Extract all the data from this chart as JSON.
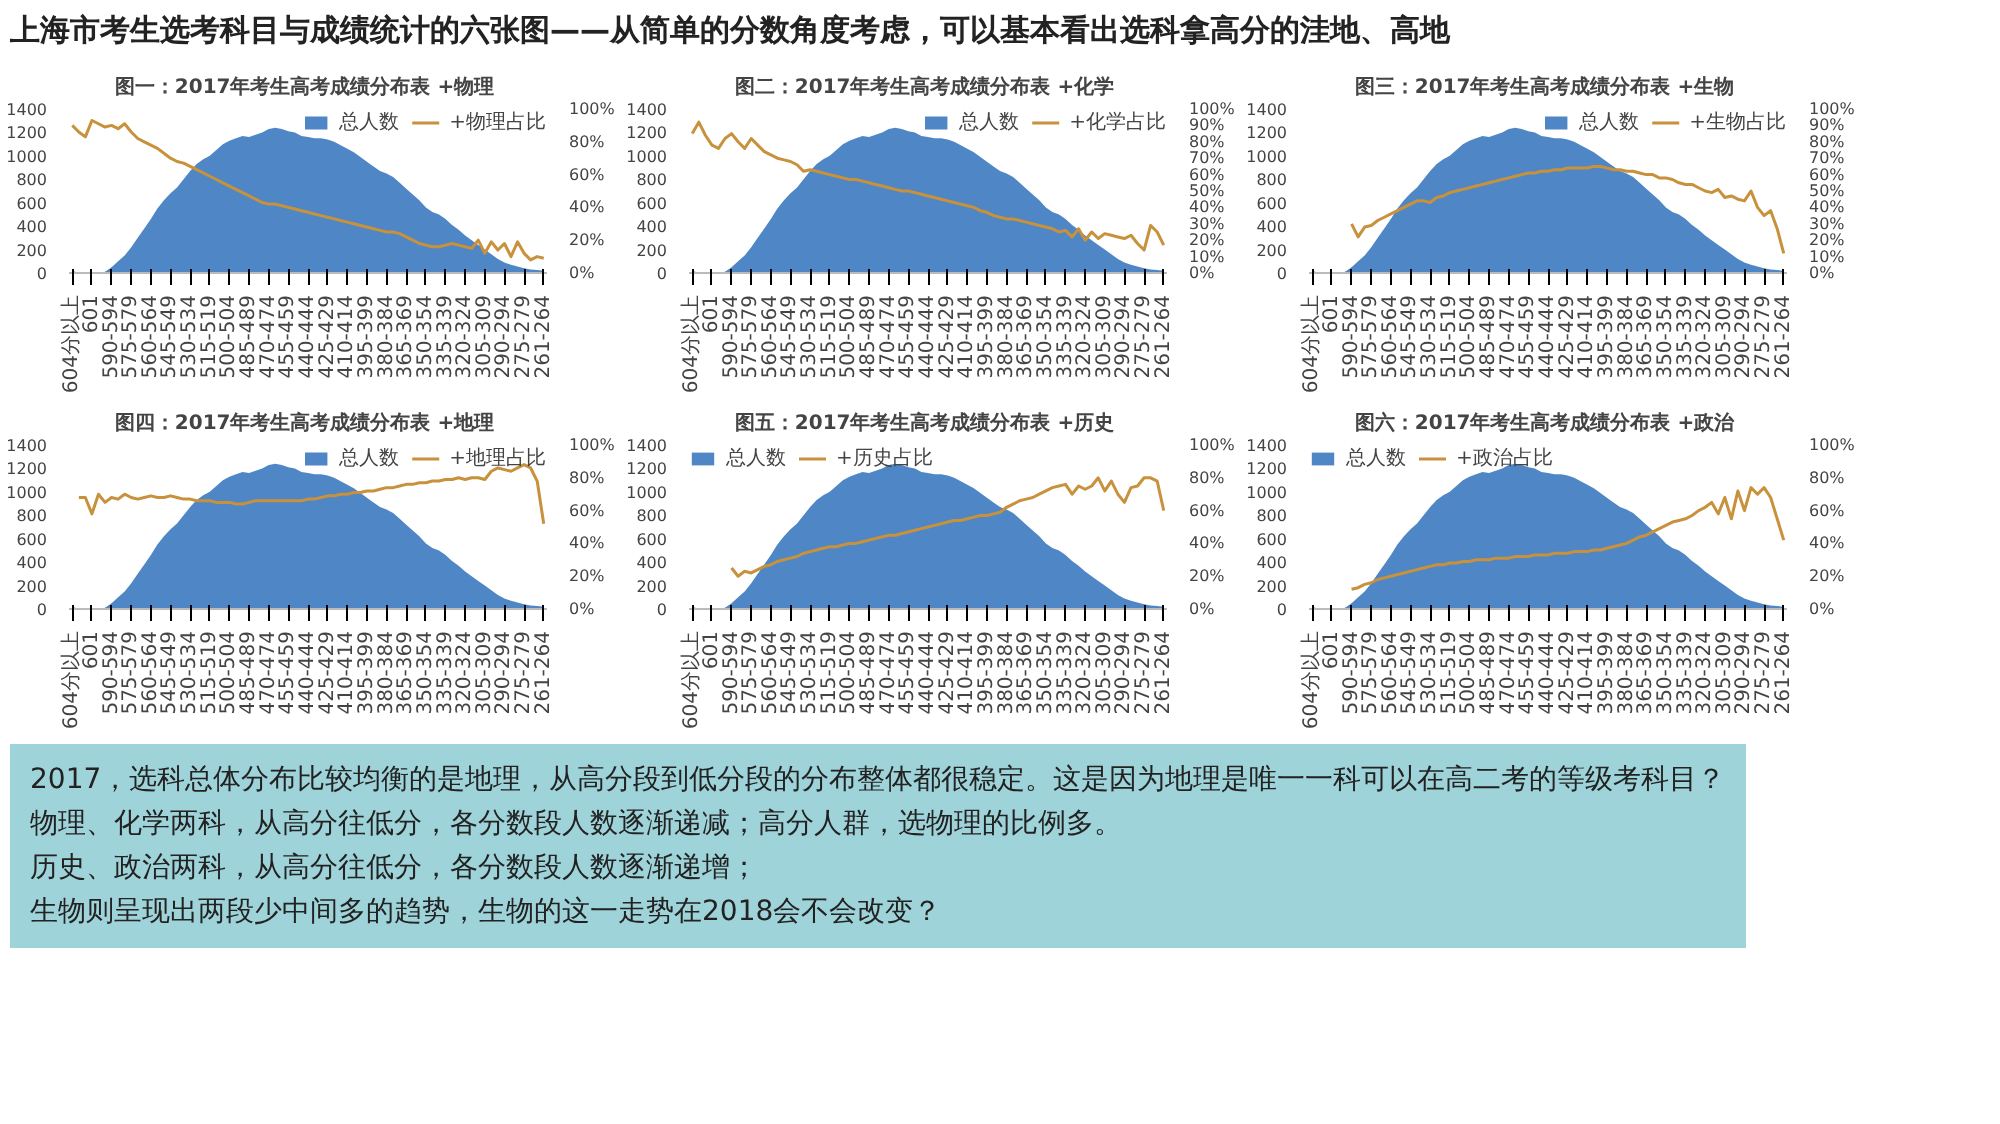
{
  "chart_data": [
    {
      "type": "other",
      "title": "上海市考生选考科目与成绩统计的六张图——从简单的分数角度考虑，可以基本看出选科拿高分的洼地、高地"
    },
    {
      "type": "area",
      "title": "图一：2017年考生高考成绩分布表  +物理",
      "legend": "top right",
      "ylim": [
        0,
        1400
      ],
      "yticks": [
        0,
        200,
        400,
        600,
        800,
        1000,
        1200,
        1400
      ],
      "y2lim": [
        0,
        100
      ],
      "y2ticks": [
        {
          "value": 0,
          "label": "0%"
        },
        {
          "value": 20,
          "label": "20%"
        },
        {
          "value": 40,
          "label": "40%"
        },
        {
          "value": 60,
          "label": "60%"
        },
        {
          "value": 80,
          "label": "80%"
        },
        {
          "value": 100,
          "label": "100%"
        }
      ],
      "categories": [
        "604分以上",
        null,
        null,
        "601",
        null,
        null,
        "590-594",
        null,
        null,
        "575-579",
        null,
        null,
        "560-564",
        null,
        null,
        "545-549",
        null,
        null,
        "530-534",
        null,
        null,
        "515-519",
        null,
        null,
        "500-504",
        null,
        null,
        "485-489",
        null,
        null,
        "470-474",
        null,
        null,
        "455-459",
        null,
        null,
        "440-444",
        null,
        null,
        "425-429",
        null,
        null,
        "410-414",
        null,
        null,
        "395-399",
        null,
        null,
        "380-384",
        null,
        null,
        "365-369",
        null,
        null,
        "350-354",
        null,
        null,
        "335-339",
        null,
        null,
        "320-324",
        null,
        null,
        "305-309",
        null,
        null,
        "290-294",
        null,
        null,
        "275-279",
        null,
        null,
        "261-264"
      ],
      "series": [
        {
          "name": "总人数",
          "type": "area",
          "color": "#4f86c6",
          "values": [
            20,
            0,
            0,
            0,
            0,
            10,
            50,
            100,
            150,
            220,
            300,
            380,
            460,
            550,
            620,
            680,
            730,
            800,
            870,
            930,
            970,
            1000,
            1050,
            1100,
            1130,
            1150,
            1170,
            1160,
            1180,
            1200,
            1230,
            1240,
            1230,
            1210,
            1200,
            1170,
            1160,
            1150,
            1150,
            1140,
            1120,
            1090,
            1060,
            1030,
            990,
            950,
            910,
            870,
            850,
            820,
            770,
            720,
            670,
            620,
            560,
            520,
            500,
            460,
            410,
            370,
            320,
            280,
            240,
            200,
            160,
            120,
            90,
            70,
            55,
            40,
            30,
            25,
            20
          ]
        },
        {
          "name": "+物理占比",
          "type": "line",
          "axis": "y2",
          "color": "#c8913c",
          "values": [
            90,
            86,
            83,
            93,
            91,
            89,
            90,
            88,
            91,
            86,
            82,
            80,
            78,
            76,
            73,
            70,
            68,
            67,
            65,
            63,
            61,
            59,
            57,
            55,
            53,
            51,
            49,
            47,
            45,
            43,
            42,
            42,
            41,
            40,
            39,
            38,
            37,
            36,
            35,
            34,
            33,
            32,
            31,
            30,
            29,
            28,
            27,
            26,
            25,
            25,
            24,
            22,
            20,
            18,
            17,
            16,
            16,
            17,
            18,
            17,
            16,
            15,
            20,
            12,
            19,
            14,
            18,
            10,
            19,
            12,
            8,
            10,
            9
          ]
        }
      ]
    },
    {
      "type": "area",
      "title": "图二：2017年考生高考成绩分布表  +化学",
      "legend": "top right",
      "ylim": [
        0,
        1400
      ],
      "yticks": [
        0,
        200,
        400,
        600,
        800,
        1000,
        1200,
        1400
      ],
      "y2lim": [
        0,
        100
      ],
      "y2ticks": [
        {
          "value": 0,
          "label": "0%"
        },
        {
          "value": 10,
          "label": "10%"
        },
        {
          "value": 20,
          "label": "20%"
        },
        {
          "value": 30,
          "label": "30%"
        },
        {
          "value": 40,
          "label": "40%"
        },
        {
          "value": 50,
          "label": "50%"
        },
        {
          "value": 60,
          "label": "60%"
        },
        {
          "value": 70,
          "label": "70%"
        },
        {
          "value": 80,
          "label": "80%"
        },
        {
          "value": 90,
          "label": "90%"
        },
        {
          "value": 100,
          "label": "100%"
        }
      ],
      "categories": [
        "604分以上",
        null,
        null,
        "601",
        null,
        null,
        "590-594",
        null,
        null,
        "575-579",
        null,
        null,
        "560-564",
        null,
        null,
        "545-549",
        null,
        null,
        "530-534",
        null,
        null,
        "515-519",
        null,
        null,
        "500-504",
        null,
        null,
        "485-489",
        null,
        null,
        "470-474",
        null,
        null,
        "455-459",
        null,
        null,
        "440-444",
        null,
        null,
        "425-429",
        null,
        null,
        "410-414",
        null,
        null,
        "395-399",
        null,
        null,
        "380-384",
        null,
        null,
        "365-369",
        null,
        null,
        "350-354",
        null,
        null,
        "335-339",
        null,
        null,
        "320-324",
        null,
        null,
        "305-309",
        null,
        null,
        "290-294",
        null,
        null,
        "275-279",
        null,
        null,
        "261-264"
      ],
      "series": [
        {
          "name": "总人数",
          "type": "area",
          "color": "#4f86c6",
          "values": [
            20,
            0,
            0,
            0,
            0,
            10,
            50,
            100,
            150,
            220,
            300,
            380,
            460,
            550,
            620,
            680,
            730,
            800,
            870,
            930,
            970,
            1000,
            1050,
            1100,
            1130,
            1150,
            1170,
            1160,
            1180,
            1200,
            1230,
            1240,
            1230,
            1210,
            1200,
            1170,
            1160,
            1150,
            1150,
            1140,
            1120,
            1090,
            1060,
            1030,
            990,
            950,
            910,
            870,
            850,
            820,
            770,
            720,
            670,
            620,
            560,
            520,
            500,
            460,
            410,
            370,
            320,
            280,
            240,
            200,
            160,
            120,
            90,
            70,
            55,
            40,
            30,
            25,
            20
          ]
        },
        {
          "name": "+化学占比",
          "type": "line",
          "axis": "y2",
          "color": "#c8913c",
          "values": [
            85,
            92,
            84,
            78,
            76,
            82,
            85,
            80,
            76,
            82,
            78,
            74,
            72,
            70,
            69,
            68,
            66,
            62,
            63,
            62,
            61,
            60,
            59,
            58,
            57,
            57,
            56,
            55,
            54,
            53,
            52,
            51,
            50,
            50,
            49,
            48,
            47,
            46,
            45,
            44,
            43,
            42,
            41,
            40,
            38,
            37,
            35,
            34,
            33,
            33,
            32,
            31,
            30,
            29,
            28,
            27,
            25,
            26,
            22,
            27,
            20,
            25,
            21,
            24,
            23,
            22,
            21,
            23,
            18,
            14,
            29,
            25,
            17
          ]
        }
      ]
    },
    {
      "type": "area",
      "title": "图三：2017年考生高考成绩分布表  +生物",
      "legend": "top right",
      "ylim": [
        0,
        1400
      ],
      "yticks": [
        0,
        200,
        400,
        600,
        800,
        1000,
        1200,
        1400
      ],
      "y2lim": [
        0,
        100
      ],
      "y2ticks": [
        {
          "value": 0,
          "label": "0%"
        },
        {
          "value": 10,
          "label": "10%"
        },
        {
          "value": 20,
          "label": "20%"
        },
        {
          "value": 30,
          "label": "30%"
        },
        {
          "value": 40,
          "label": "40%"
        },
        {
          "value": 50,
          "label": "50%"
        },
        {
          "value": 60,
          "label": "60%"
        },
        {
          "value": 70,
          "label": "70%"
        },
        {
          "value": 80,
          "label": "80%"
        },
        {
          "value": 90,
          "label": "90%"
        },
        {
          "value": 100,
          "label": "100%"
        }
      ],
      "categories": [
        "604分以上",
        null,
        null,
        "601",
        null,
        null,
        "590-594",
        null,
        null,
        "575-579",
        null,
        null,
        "560-564",
        null,
        null,
        "545-549",
        null,
        null,
        "530-534",
        null,
        null,
        "515-519",
        null,
        null,
        "500-504",
        null,
        null,
        "485-489",
        null,
        null,
        "470-474",
        null,
        null,
        "455-459",
        null,
        null,
        "440-444",
        null,
        null,
        "425-429",
        null,
        null,
        "410-414",
        null,
        null,
        "395-399",
        null,
        null,
        "380-384",
        null,
        null,
        "365-369",
        null,
        null,
        "350-354",
        null,
        null,
        "335-339",
        null,
        null,
        "320-324",
        null,
        null,
        "305-309",
        null,
        null,
        "290-294",
        null,
        null,
        "275-279",
        null,
        null,
        "261-264"
      ],
      "series": [
        {
          "name": "总人数",
          "type": "area",
          "color": "#4f86c6",
          "values": [
            20,
            0,
            0,
            0,
            0,
            10,
            50,
            100,
            150,
            220,
            300,
            380,
            460,
            550,
            620,
            680,
            730,
            800,
            870,
            930,
            970,
            1000,
            1050,
            1100,
            1130,
            1150,
            1170,
            1160,
            1180,
            1200,
            1230,
            1240,
            1230,
            1210,
            1200,
            1170,
            1160,
            1150,
            1150,
            1140,
            1120,
            1090,
            1060,
            1030,
            990,
            950,
            910,
            870,
            850,
            820,
            770,
            720,
            670,
            620,
            560,
            520,
            500,
            460,
            410,
            370,
            320,
            280,
            240,
            200,
            160,
            120,
            90,
            70,
            55,
            40,
            30,
            25,
            20
          ]
        },
        {
          "name": "+生物占比",
          "type": "line",
          "axis": "y2",
          "color": "#c8913c",
          "values": [
            null,
            null,
            null,
            null,
            null,
            null,
            30,
            22,
            28,
            29,
            32,
            34,
            36,
            38,
            40,
            42,
            44,
            44,
            43,
            46,
            47,
            49,
            50,
            51,
            52,
            53,
            54,
            55,
            56,
            57,
            58,
            59,
            60,
            61,
            61,
            62,
            62,
            63,
            63,
            64,
            64,
            64,
            64,
            65,
            65,
            64,
            63,
            63,
            62,
            62,
            61,
            60,
            60,
            58,
            58,
            57,
            55,
            54,
            54,
            52,
            50,
            49,
            51,
            46,
            47,
            45,
            44,
            50,
            40,
            35,
            38,
            27,
            12
          ]
        }
      ]
    },
    {
      "type": "area",
      "title": "图四：2017年考生高考成绩分布表  +地理",
      "legend": "top right",
      "ylim": [
        0,
        1400
      ],
      "yticks": [
        0,
        200,
        400,
        600,
        800,
        1000,
        1200,
        1400
      ],
      "y2lim": [
        0,
        100
      ],
      "y2ticks": [
        {
          "value": 0,
          "label": "0%"
        },
        {
          "value": 20,
          "label": "20%"
        },
        {
          "value": 40,
          "label": "40%"
        },
        {
          "value": 60,
          "label": "60%"
        },
        {
          "value": 80,
          "label": "80%"
        },
        {
          "value": 100,
          "label": "100%"
        }
      ],
      "categories": [
        "604分以上",
        null,
        null,
        "601",
        null,
        null,
        "590-594",
        null,
        null,
        "575-579",
        null,
        null,
        "560-564",
        null,
        null,
        "545-549",
        null,
        null,
        "530-534",
        null,
        null,
        "515-519",
        null,
        null,
        "500-504",
        null,
        null,
        "485-489",
        null,
        null,
        "470-474",
        null,
        null,
        "455-459",
        null,
        null,
        "440-444",
        null,
        null,
        "425-429",
        null,
        null,
        "410-414",
        null,
        null,
        "395-399",
        null,
        null,
        "380-384",
        null,
        null,
        "365-369",
        null,
        null,
        "350-354",
        null,
        null,
        "335-339",
        null,
        null,
        "320-324",
        null,
        null,
        "305-309",
        null,
        null,
        "290-294",
        null,
        null,
        "275-279",
        null,
        null,
        "261-264"
      ],
      "series": [
        {
          "name": "总人数",
          "type": "area",
          "color": "#4f86c6",
          "values": [
            20,
            0,
            0,
            0,
            0,
            10,
            50,
            100,
            150,
            220,
            300,
            380,
            460,
            550,
            620,
            680,
            730,
            800,
            870,
            930,
            970,
            1000,
            1050,
            1100,
            1130,
            1150,
            1170,
            1160,
            1180,
            1200,
            1230,
            1240,
            1230,
            1210,
            1200,
            1170,
            1160,
            1150,
            1150,
            1140,
            1120,
            1090,
            1060,
            1030,
            990,
            950,
            910,
            870,
            850,
            820,
            770,
            720,
            670,
            620,
            560,
            520,
            500,
            460,
            410,
            370,
            320,
            280,
            240,
            200,
            160,
            120,
            90,
            70,
            55,
            40,
            30,
            25,
            20
          ]
        },
        {
          "name": "+地理占比",
          "type": "line",
          "axis": "y2",
          "color": "#c8913c",
          "values": [
            null,
            68,
            68,
            58,
            70,
            65,
            68,
            67,
            70,
            68,
            67,
            68,
            69,
            68,
            68,
            69,
            68,
            67,
            67,
            66,
            66,
            66,
            65,
            65,
            65,
            64,
            64,
            65,
            66,
            66,
            66,
            66,
            66,
            66,
            66,
            66,
            67,
            67,
            68,
            69,
            69,
            70,
            70,
            71,
            71,
            72,
            72,
            73,
            74,
            74,
            75,
            76,
            76,
            77,
            77,
            78,
            78,
            79,
            79,
            80,
            79,
            80,
            80,
            79,
            84,
            86,
            85,
            84,
            86,
            88,
            86,
            78,
            52
          ]
        }
      ]
    },
    {
      "type": "area",
      "title": "图五：2017年考生高考成绩分布表  +历史",
      "legend": "top left",
      "ylim": [
        0,
        1400
      ],
      "yticks": [
        0,
        200,
        400,
        600,
        800,
        1000,
        1200,
        1400
      ],
      "y2lim": [
        0,
        100
      ],
      "y2ticks": [
        {
          "value": 0,
          "label": "0%"
        },
        {
          "value": 20,
          "label": "20%"
        },
        {
          "value": 40,
          "label": "40%"
        },
        {
          "value": 60,
          "label": "60%"
        },
        {
          "value": 80,
          "label": "80%"
        },
        {
          "value": 100,
          "label": "100%"
        }
      ],
      "categories": [
        "604分以上",
        null,
        null,
        "601",
        null,
        null,
        "590-594",
        null,
        null,
        "575-579",
        null,
        null,
        "560-564",
        null,
        null,
        "545-549",
        null,
        null,
        "530-534",
        null,
        null,
        "515-519",
        null,
        null,
        "500-504",
        null,
        null,
        "485-489",
        null,
        null,
        "470-474",
        null,
        null,
        "455-459",
        null,
        null,
        "440-444",
        null,
        null,
        "425-429",
        null,
        null,
        "410-414",
        null,
        null,
        "395-399",
        null,
        null,
        "380-384",
        null,
        null,
        "365-369",
        null,
        null,
        "350-354",
        null,
        null,
        "335-339",
        null,
        null,
        "320-324",
        null,
        null,
        "305-309",
        null,
        null,
        "290-294",
        null,
        null,
        "275-279",
        null,
        null,
        "261-264"
      ],
      "series": [
        {
          "name": "总人数",
          "type": "area",
          "color": "#4f86c6",
          "values": [
            20,
            0,
            0,
            0,
            0,
            10,
            50,
            100,
            150,
            220,
            300,
            380,
            460,
            550,
            620,
            680,
            730,
            800,
            870,
            930,
            970,
            1000,
            1050,
            1100,
            1130,
            1150,
            1170,
            1160,
            1180,
            1200,
            1230,
            1240,
            1230,
            1210,
            1200,
            1170,
            1160,
            1150,
            1150,
            1140,
            1120,
            1090,
            1060,
            1030,
            990,
            950,
            910,
            870,
            850,
            820,
            770,
            720,
            670,
            620,
            560,
            520,
            500,
            460,
            410,
            370,
            320,
            280,
            240,
            200,
            160,
            120,
            90,
            70,
            55,
            40,
            30,
            25,
            20
          ]
        },
        {
          "name": "+历史占比",
          "type": "line",
          "axis": "y2",
          "color": "#c8913c",
          "values": [
            null,
            null,
            null,
            null,
            null,
            null,
            25,
            20,
            23,
            22,
            24,
            26,
            27,
            29,
            30,
            31,
            32,
            34,
            35,
            36,
            37,
            38,
            38,
            39,
            40,
            40,
            41,
            42,
            43,
            44,
            45,
            45,
            46,
            47,
            48,
            49,
            50,
            51,
            52,
            53,
            54,
            54,
            55,
            56,
            57,
            57,
            58,
            59,
            62,
            64,
            66,
            67,
            68,
            70,
            72,
            74,
            75,
            76,
            70,
            75,
            73,
            75,
            80,
            72,
            78,
            70,
            65,
            74,
            75,
            80,
            80,
            78,
            60
          ]
        }
      ]
    },
    {
      "type": "area",
      "title": "图六：2017年考生高考成绩分布表  +政治",
      "legend": "top left",
      "ylim": [
        0,
        1400
      ],
      "yticks": [
        0,
        200,
        400,
        600,
        800,
        1000,
        1200,
        1400
      ],
      "y2lim": [
        0,
        100
      ],
      "y2ticks": [
        {
          "value": 0,
          "label": "0%"
        },
        {
          "value": 20,
          "label": "20%"
        },
        {
          "value": 40,
          "label": "40%"
        },
        {
          "value": 60,
          "label": "60%"
        },
        {
          "value": 80,
          "label": "80%"
        },
        {
          "value": 100,
          "label": "100%"
        }
      ],
      "categories": [
        "604分以上",
        null,
        null,
        "601",
        null,
        null,
        "590-594",
        null,
        null,
        "575-579",
        null,
        null,
        "560-564",
        null,
        null,
        "545-549",
        null,
        null,
        "530-534",
        null,
        null,
        "515-519",
        null,
        null,
        "500-504",
        null,
        null,
        "485-489",
        null,
        null,
        "470-474",
        null,
        null,
        "455-459",
        null,
        null,
        "440-444",
        null,
        null,
        "425-429",
        null,
        null,
        "410-414",
        null,
        null,
        "395-399",
        null,
        null,
        "380-384",
        null,
        null,
        "365-369",
        null,
        null,
        "350-354",
        null,
        null,
        "335-339",
        null,
        null,
        "320-324",
        null,
        null,
        "305-309",
        null,
        null,
        "290-294",
        null,
        null,
        "275-279",
        null,
        null,
        "261-264"
      ],
      "series": [
        {
          "name": "总人数",
          "type": "area",
          "color": "#4f86c6",
          "values": [
            20,
            0,
            0,
            0,
            0,
            10,
            50,
            100,
            150,
            220,
            300,
            380,
            460,
            550,
            620,
            680,
            730,
            800,
            870,
            930,
            970,
            1000,
            1050,
            1100,
            1130,
            1150,
            1170,
            1160,
            1180,
            1200,
            1230,
            1240,
            1230,
            1210,
            1200,
            1170,
            1160,
            1150,
            1150,
            1140,
            1120,
            1090,
            1060,
            1030,
            990,
            950,
            910,
            870,
            850,
            820,
            770,
            720,
            670,
            620,
            560,
            520,
            500,
            460,
            410,
            370,
            320,
            280,
            240,
            200,
            160,
            120,
            90,
            70,
            55,
            40,
            30,
            25,
            20
          ]
        },
        {
          "name": "+政治占比",
          "type": "line",
          "axis": "y2",
          "color": "#c8913c",
          "values": [
            null,
            null,
            null,
            null,
            null,
            null,
            12,
            13,
            15,
            16,
            18,
            19,
            20,
            21,
            22,
            23,
            24,
            25,
            26,
            27,
            27,
            28,
            28,
            29,
            29,
            30,
            30,
            30,
            31,
            31,
            31,
            32,
            32,
            32,
            33,
            33,
            33,
            34,
            34,
            34,
            35,
            35,
            35,
            36,
            36,
            37,
            38,
            39,
            40,
            42,
            44,
            45,
            47,
            49,
            51,
            53,
            54,
            55,
            57,
            60,
            62,
            65,
            58,
            68,
            55,
            72,
            60,
            74,
            70,
            74,
            68,
            55,
            42
          ]
        }
      ]
    },
    {
      "type": "other",
      "annotations": [
        "2017，选科总体分布比较均衡的是地理，从高分段到低分段的分布整体都很稳定。这是因为地理是唯一一科可以在高二考的等级考科目？",
        "物理、化学两科，从高分往低分，各分数段人数逐渐递减；高分人群，选物理的比例多。",
        "历史、政治两科，从高分往低分，各分数段人数逐渐递增；",
        "生物则呈现出两段少中间多的趋势，生物的这一走势在2018会不会改变？"
      ]
    }
  ]
}
